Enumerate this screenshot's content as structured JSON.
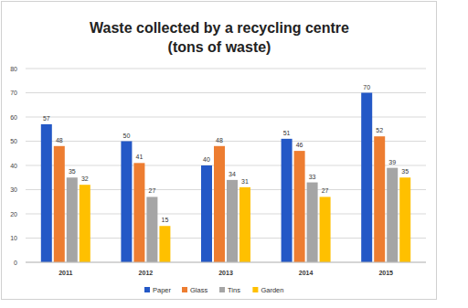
{
  "chart_data": {
    "type": "bar",
    "title": "Waste collected by a recycling centre",
    "subtitle": "(tons of waste)",
    "categories": [
      "2011",
      "2012",
      "2013",
      "2014",
      "2015"
    ],
    "series": [
      {
        "name": "Paper",
        "color": "#2458c6",
        "values": [
          57,
          50,
          40,
          51,
          70
        ]
      },
      {
        "name": "Glass",
        "color": "#ed7d31",
        "values": [
          48,
          41,
          48,
          46,
          52
        ]
      },
      {
        "name": "Tins",
        "color": "#a5a5a5",
        "values": [
          35,
          27,
          34,
          33,
          39
        ]
      },
      {
        "name": "Garden",
        "color": "#ffc000",
        "values": [
          32,
          15,
          31,
          27,
          35
        ]
      }
    ],
    "ylim": [
      0,
      80
    ],
    "yticks": [
      0,
      10,
      20,
      30,
      40,
      50,
      60,
      70,
      80
    ],
    "grid": true,
    "legend": "bottom",
    "data_labels": true
  }
}
